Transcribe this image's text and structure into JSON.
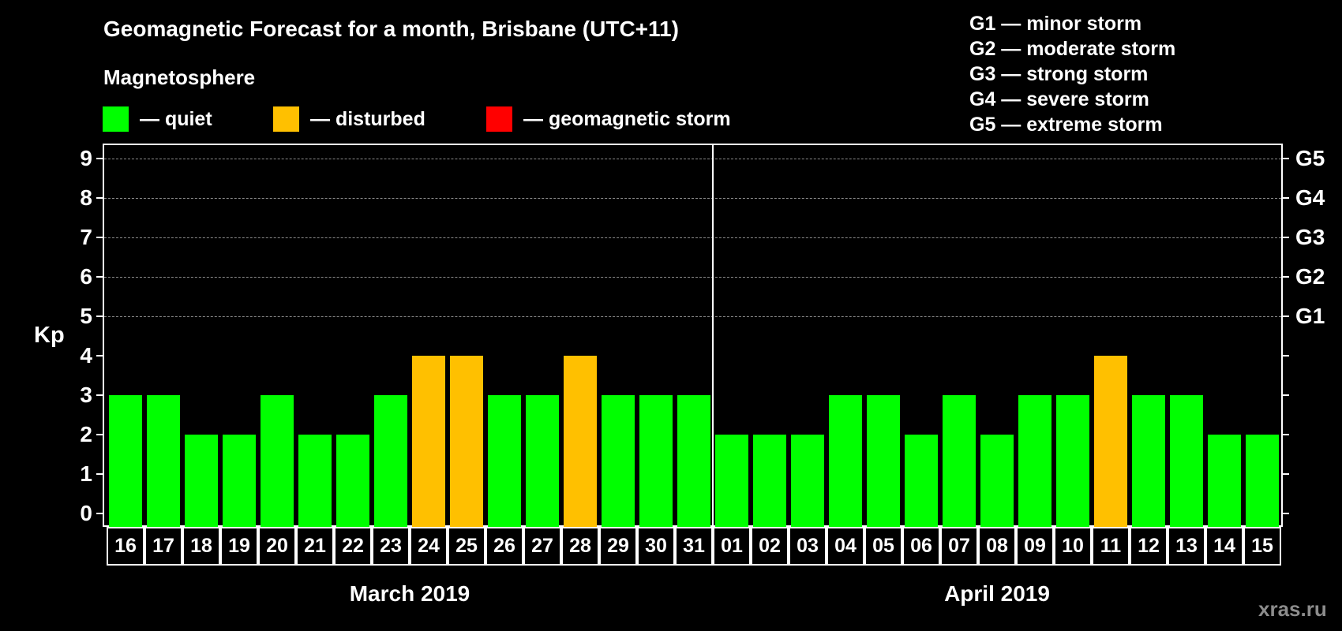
{
  "header": {
    "title": "Geomagnetic Forecast for a month, Brisbane (UTC+11)",
    "subtitle": "Magnetosphere"
  },
  "legend": [
    {
      "label": "— quiet",
      "color": "#00ff00"
    },
    {
      "label": "— disturbed",
      "color": "#ffc000"
    },
    {
      "label": "— geomagnetic storm",
      "color": "#ff0000"
    }
  ],
  "gscale": [
    "G1 — minor storm",
    "G2 — moderate storm",
    "G3 — strong storm",
    "G4 — severe storm",
    "G5 — extreme storm"
  ],
  "axis": {
    "ylabel": "Kp",
    "yticks": [
      "0",
      "1",
      "2",
      "3",
      "4",
      "5",
      "6",
      "7",
      "8",
      "9"
    ],
    "right_labels": {
      "5": "G1",
      "6": "G2",
      "7": "G3",
      "8": "G4",
      "9": "G5"
    }
  },
  "months": [
    "March 2019",
    "April 2019"
  ],
  "watermark": "xras.ru",
  "colors": {
    "quiet": "#00ff00",
    "disturbed": "#ffc000",
    "storm": "#ff0000",
    "grid": "#8a8a8a",
    "background": "#000000"
  },
  "chart_data": {
    "type": "bar",
    "title": "Geomagnetic Forecast for a month, Brisbane (UTC+11)",
    "xlabel": "",
    "ylabel": "Kp",
    "ylim": [
      0,
      9
    ],
    "grid": true,
    "categories": [
      "16",
      "17",
      "18",
      "19",
      "20",
      "21",
      "22",
      "23",
      "24",
      "25",
      "26",
      "27",
      "28",
      "29",
      "30",
      "31",
      "01",
      "02",
      "03",
      "04",
      "05",
      "06",
      "07",
      "08",
      "09",
      "10",
      "11",
      "12",
      "13",
      "14",
      "15"
    ],
    "category_months": [
      "March 2019",
      "March 2019",
      "March 2019",
      "March 2019",
      "March 2019",
      "March 2019",
      "March 2019",
      "March 2019",
      "March 2019",
      "March 2019",
      "March 2019",
      "March 2019",
      "March 2019",
      "March 2019",
      "March 2019",
      "March 2019",
      "April 2019",
      "April 2019",
      "April 2019",
      "April 2019",
      "April 2019",
      "April 2019",
      "April 2019",
      "April 2019",
      "April 2019",
      "April 2019",
      "April 2019",
      "April 2019",
      "April 2019",
      "April 2019",
      "April 2019"
    ],
    "values": [
      3,
      3,
      2,
      2,
      3,
      2,
      2,
      3,
      4,
      4,
      3,
      3,
      4,
      3,
      3,
      3,
      2,
      2,
      2,
      3,
      3,
      2,
      3,
      2,
      3,
      3,
      4,
      3,
      3,
      2,
      2
    ],
    "status": [
      "quiet",
      "quiet",
      "quiet",
      "quiet",
      "quiet",
      "quiet",
      "quiet",
      "quiet",
      "disturbed",
      "disturbed",
      "quiet",
      "quiet",
      "disturbed",
      "quiet",
      "quiet",
      "quiet",
      "quiet",
      "quiet",
      "quiet",
      "quiet",
      "quiet",
      "quiet",
      "quiet",
      "quiet",
      "quiet",
      "quiet",
      "disturbed",
      "quiet",
      "quiet",
      "quiet",
      "quiet"
    ],
    "legend": [
      "quiet",
      "disturbed",
      "geomagnetic storm"
    ],
    "right_axis": {
      "5": "G1",
      "6": "G2",
      "7": "G3",
      "8": "G4",
      "9": "G5"
    }
  }
}
